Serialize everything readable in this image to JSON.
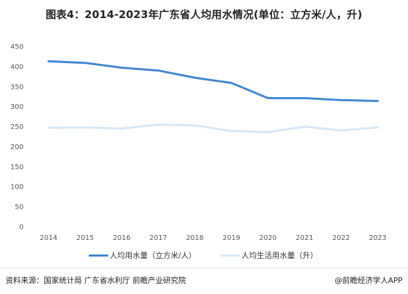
{
  "title": "图表4：2014-2023年广东省人均用水情况(单位：立方米/人，升)",
  "chart_data": {
    "type": "line",
    "x": [
      "2014",
      "2015",
      "2016",
      "2017",
      "2018",
      "2019",
      "2020",
      "2021",
      "2022",
      "2023"
    ],
    "ylim": [
      0,
      450
    ],
    "yticks": [
      0,
      50,
      100,
      150,
      200,
      250,
      300,
      350,
      400,
      450
    ],
    "grid": false,
    "legend_position": "bottom",
    "series": [
      {
        "name": "人均用水量（立方米/人）",
        "color": "#3f86d4",
        "width": 3,
        "values": [
          413,
          409,
          397,
          390,
          372,
          359,
          321,
          321,
          316,
          314
        ]
      },
      {
        "name": "人均生活用水量（升）",
        "color": "#d6e6f5",
        "width": 3,
        "values": [
          247,
          248,
          245,
          255,
          253,
          239,
          236,
          250,
          240,
          248
        ]
      }
    ]
  },
  "footer": {
    "source": "资料来源：国家统计局 广东省水利厅 前瞻产业研究院",
    "brand": "@前瞻经济学人APP"
  }
}
